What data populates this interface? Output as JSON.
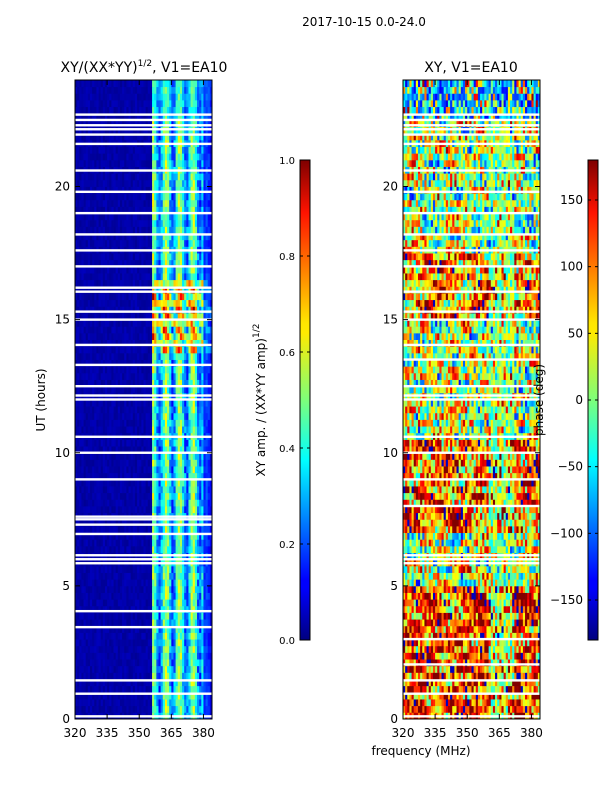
{
  "figure": {
    "suptitle": "2017-10-15 0.0-24.0",
    "xlabel_shared": "frequency (MHz)"
  },
  "chart_data": [
    {
      "type": "heatmap",
      "title": "XY/(XX*YY)^(1/2), V1=EA10",
      "title_main": "XY/(XX*YY)",
      "title_exp": "1/2",
      "title_tail": ", V1=EA10",
      "xlabel": "",
      "ylabel": "UT (hours)",
      "xlim": [
        320,
        384
      ],
      "ylim": [
        0,
        24
      ],
      "xticks": [
        320,
        335,
        350,
        365,
        380
      ],
      "yticks": [
        0,
        5,
        10,
        15,
        20
      ],
      "colorbar": {
        "label": "XY amp. / (XX*YY amp)^(1/2)",
        "label_main": "XY amp. / (XX*YY amp)",
        "label_exp": "1/2",
        "range": [
          0.0,
          1.0
        ],
        "ticks": [
          "0.0",
          "0.2",
          "0.4",
          "0.6",
          "0.8",
          "1.0"
        ],
        "tick_values": [
          0.0,
          0.2,
          0.4,
          0.6,
          0.8,
          1.0
        ],
        "colormap": "jet"
      },
      "flagged_hours": [
        0.1,
        0.95,
        1.45,
        3.45,
        4.05,
        5.85,
        6.0,
        6.15,
        6.95,
        7.3,
        7.5,
        7.6,
        9.0,
        10.0,
        10.6,
        12.0,
        12.15,
        12.5,
        13.3,
        14.05,
        15.0,
        15.3,
        16.05,
        16.2,
        17.0,
        17.6,
        18.2,
        19.0,
        19.8,
        20.6,
        21.6,
        21.95,
        22.15,
        22.3,
        22.5,
        22.7
      ],
      "signal_band_mhz": [
        356,
        382
      ],
      "amplitude_description": "near 0 below 356 MHz; ~0.4-0.6 in band; ~0.8-1.0 near 14-16.5 h"
    },
    {
      "type": "heatmap",
      "title": "XY, V1=EA10",
      "xlabel": "frequency (MHz)",
      "ylabel": "",
      "xlim": [
        320,
        384
      ],
      "ylim": [
        0,
        24
      ],
      "xticks": [
        320,
        335,
        350,
        365,
        380
      ],
      "yticks": [
        0,
        5,
        10,
        15,
        20
      ],
      "colorbar": {
        "label": "phase (deg)",
        "range": [
          -180,
          180
        ],
        "ticks": [
          "−150",
          "−100",
          "−50",
          "0",
          "50",
          "100",
          "150"
        ],
        "tick_values": [
          -150,
          -100,
          -50,
          0,
          50,
          100,
          150
        ],
        "colormap": "jet"
      },
      "flagged_hours": [
        0.1,
        0.95,
        1.45,
        2.05,
        3.0,
        5.85,
        6.0,
        6.15,
        8.0,
        9.0,
        10.0,
        10.6,
        12.0,
        12.15,
        12.5,
        13.5,
        14.05,
        15.0,
        15.3,
        16.05,
        17.0,
        17.6,
        18.2,
        19.0,
        19.8,
        20.6,
        21.6,
        21.95,
        22.15,
        22.3,
        22.5,
        22.7
      ],
      "phase_description": "mixed phase -180 to 180 deg; predominantly +100 to +150 below 5 h and 7-10 h"
    }
  ]
}
